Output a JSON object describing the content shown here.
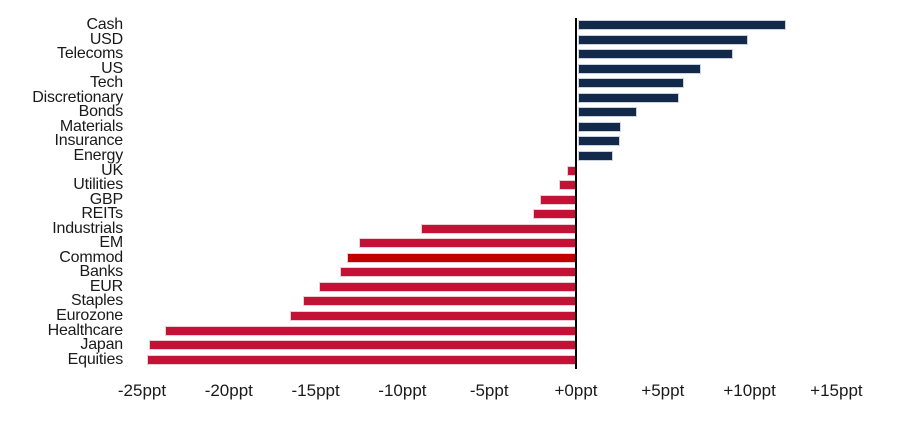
{
  "chart_data": {
    "type": "bar",
    "orientation": "horizontal",
    "title": "",
    "xlabel": "",
    "ylabel": "",
    "unit": "ppt",
    "xlim": [
      -25,
      15
    ],
    "grid": false,
    "categories": [
      "Cash",
      "USD",
      "Telecoms",
      "US",
      "Tech",
      "Discretionary",
      "Bonds",
      "Materials",
      "Insurance",
      "Energy",
      "UK",
      "Utilities",
      "GBP",
      "REITs",
      "Industrials",
      "EM",
      "Commod",
      "Banks",
      "EUR",
      "Staples",
      "Eurozone",
      "Healthcare",
      "Japan",
      "Equities"
    ],
    "values": [
      12.0,
      9.8,
      8.9,
      7.1,
      6.1,
      5.8,
      3.4,
      2.5,
      2.4,
      2.0,
      -0.5,
      -1.0,
      -2.1,
      -2.5,
      -8.9,
      -12.5,
      -13.2,
      -13.6,
      -14.8,
      -15.7,
      -16.5,
      -23.7,
      -24.6,
      -24.7
    ],
    "highlighted_category": "Commod",
    "x_ticks": [
      {
        "value": -25,
        "label": "-25ppt"
      },
      {
        "value": -20,
        "label": "-20ppt"
      },
      {
        "value": -15,
        "label": "-15ppt"
      },
      {
        "value": -10,
        "label": "-10ppt"
      },
      {
        "value": -5,
        "label": "-5ppt"
      },
      {
        "value": 0,
        "label": "+0ppt"
      },
      {
        "value": 5,
        "label": "+5ppt"
      },
      {
        "value": 10,
        "label": "+10ppt"
      },
      {
        "value": 15,
        "label": "+15ppt"
      }
    ],
    "colors": {
      "positive": "#12294A",
      "negative": "#C41236",
      "highlight": "#C00000",
      "axis": "#000000"
    }
  }
}
